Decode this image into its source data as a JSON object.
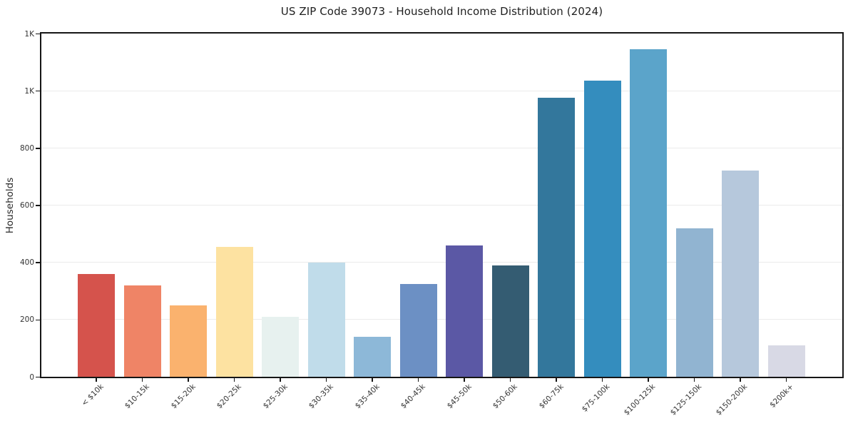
{
  "chart_data": {
    "type": "bar",
    "title": "US ZIP Code 39073 - Household Income Distribution (2024)",
    "xlabel": "",
    "ylabel": "Households",
    "ylim": [
      0,
      1200
    ],
    "grid": "horizontal",
    "legend": "none",
    "background_color": "#ffffff",
    "axis_color": "#161616",
    "grid_color": "#ebebeb",
    "yticks": [
      {
        "value": 0,
        "label": "0"
      },
      {
        "value": 200,
        "label": "200"
      },
      {
        "value": 400,
        "label": "400"
      },
      {
        "value": 600,
        "label": "600"
      },
      {
        "value": 800,
        "label": "800"
      },
      {
        "value": 1000,
        "label": "1K"
      },
      {
        "value": 1200,
        "label": "1K"
      }
    ],
    "categories": [
      "< $10k",
      "$10-15k",
      "$15-20k",
      "$20-25k",
      "$25-30k",
      "$30-35k",
      "$35-40k",
      "$40-45k",
      "$45-50k",
      "$50-60k",
      "$60-75k",
      "$75-100k",
      "$100-125k",
      "$125-150k",
      "$150-200k",
      "$200k+"
    ],
    "values": [
      360,
      320,
      250,
      455,
      210,
      400,
      140,
      325,
      460,
      390,
      975,
      1035,
      1145,
      520,
      720,
      110
    ],
    "bar_colors": [
      "#d5534c",
      "#ef8466",
      "#fab26e",
      "#fde2a1",
      "#e7f1ef",
      "#c0dcea",
      "#8db8d8",
      "#6c90c4",
      "#5b58a5",
      "#345c72",
      "#33779c",
      "#348dbe",
      "#5ba4ca",
      "#91b4d1",
      "#b6c8dc",
      "#d8d9e5"
    ]
  }
}
